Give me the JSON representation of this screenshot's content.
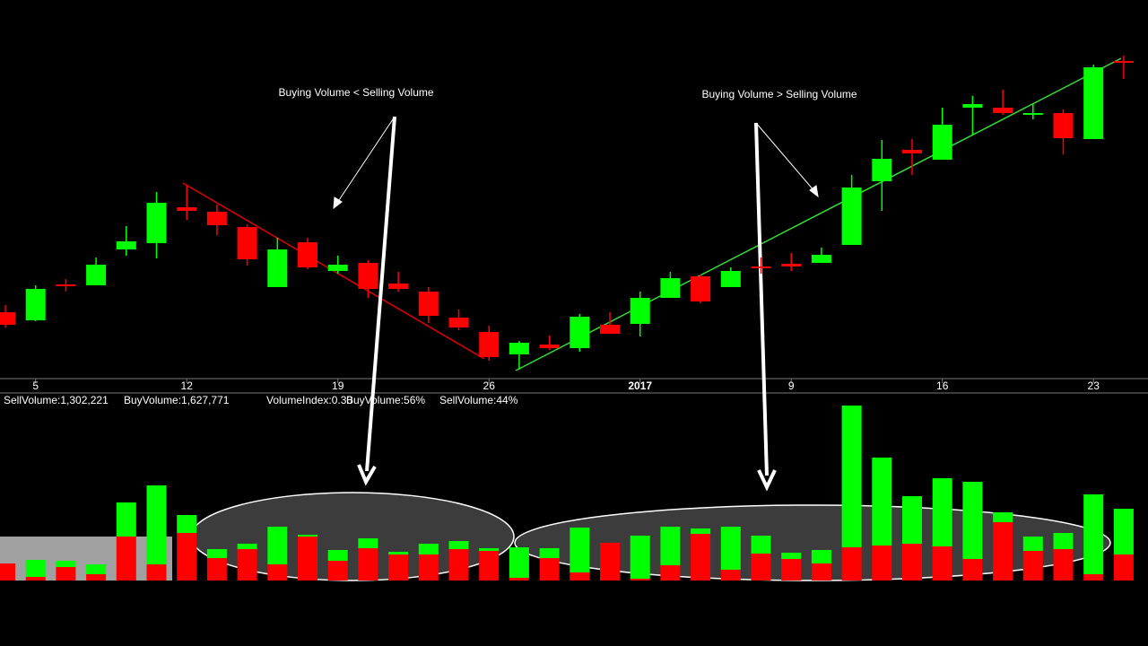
{
  "chart_data": [
    {
      "type": "candlestick",
      "categories": [
        null,
        "5",
        null,
        null,
        null,
        null,
        "12",
        null,
        null,
        null,
        null,
        "19",
        null,
        null,
        null,
        null,
        "26",
        null,
        null,
        null,
        null,
        "2017",
        null,
        null,
        null,
        null,
        "9",
        null,
        null,
        null,
        null,
        "16",
        null,
        null,
        null,
        null,
        "23",
        null
      ],
      "open": [
        72,
        63,
        103,
        102,
        142,
        149,
        189,
        184,
        167,
        100,
        150,
        118,
        127,
        104,
        95,
        66,
        50,
        25,
        36,
        32,
        58,
        59,
        88,
        112,
        100,
        123,
        126,
        127,
        147,
        218,
        253,
        242,
        300,
        300,
        292,
        294,
        265,
        352
      ],
      "high": [
        80,
        102,
        109,
        133,
        168,
        206,
        214,
        192,
        170,
        155,
        155,
        135,
        130,
        117,
        100,
        75,
        57,
        40,
        46,
        70,
        72,
        95,
        117,
        114,
        122,
        133,
        138,
        144,
        225,
        264,
        265,
        300,
        313,
        320,
        305,
        298,
        348,
        358
      ],
      "low": [
        55,
        62,
        95,
        102,
        135,
        132,
        175,
        158,
        124,
        100,
        120,
        115,
        88,
        95,
        60,
        52,
        18,
        8,
        30,
        28,
        48,
        45,
        88,
        82,
        100,
        115,
        118,
        127,
        147,
        185,
        225,
        242,
        270,
        292,
        287,
        248,
        265,
        332
      ],
      "close": [
        58,
        98,
        101,
        125,
        151,
        194,
        185,
        169,
        131,
        142,
        122,
        125,
        98,
        98,
        68,
        55,
        22,
        38,
        32,
        67,
        48,
        88,
        110,
        84,
        118,
        121,
        123,
        136,
        211,
        243,
        249,
        281,
        304,
        294,
        294,
        266,
        345,
        350
      ],
      "ylim": [
        0,
        400
      ],
      "up_color": "#00ff00",
      "down_color": "#ff0000",
      "annotations": [
        "Buying Volume < Selling Volume",
        "Buying Volume > Selling Volume"
      ]
    },
    {
      "type": "stacked_bar",
      "info": [
        "SellVolume:1,302,221",
        "BuyVolume:1,627,771",
        "VolumeIndex:0.30",
        "BuyVolume:56%",
        "SellVolume:44%"
      ],
      "series": [
        {
          "color": "#ff0000",
          "values": [
            19,
            4,
            15,
            7,
            49,
            18,
            53,
            25,
            35,
            18,
            49,
            22,
            36,
            29,
            29,
            35,
            33,
            3,
            25,
            9,
            42,
            2,
            17,
            52,
            12,
            30,
            24,
            19,
            37,
            39,
            41,
            38,
            24,
            65,
            33,
            35,
            7,
            29
          ]
        },
        {
          "color": "#00ff00",
          "values": [
            0,
            19,
            7,
            11,
            38,
            88,
            20,
            10,
            6,
            42,
            2,
            12,
            11,
            3,
            12,
            9,
            3,
            34,
            11,
            50,
            0,
            48,
            43,
            6,
            48,
            20,
            7,
            15,
            158,
            98,
            53,
            76,
            86,
            11,
            16,
            18,
            89,
            51
          ]
        }
      ],
      "ylim": [
        0,
        200
      ]
    }
  ]
}
